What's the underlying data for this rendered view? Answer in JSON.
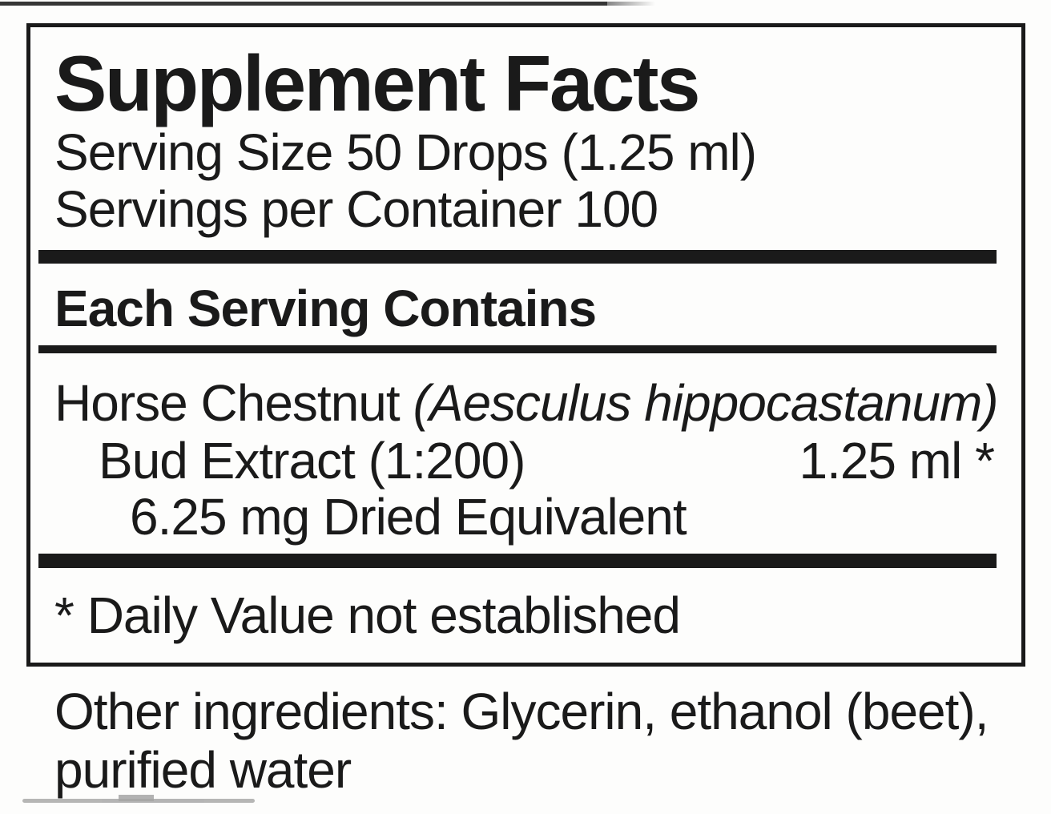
{
  "label": {
    "title": "Supplement Facts",
    "serving_size": "Serving Size 50 Drops (1.25 ml)",
    "servings_per_container": "Servings per Container 100",
    "section_header": "Each Serving Contains",
    "ingredient": {
      "common_name": "Horse Chestnut ",
      "botanical_name": "(Aesculus hippocastanum)",
      "detail": "Bud Extract (1:200)",
      "amount": "1.25 ml *",
      "equivalent": "6.25 mg Dried Equivalent"
    },
    "footnote": "* Daily Value not established",
    "other_ingredients": {
      "line1": "Other ingredients: Glycerin, ethanol (beet),",
      "line2": "purified water"
    }
  },
  "colors": {
    "ink": "#1a1a1a",
    "paper": "#fdfdfc"
  }
}
